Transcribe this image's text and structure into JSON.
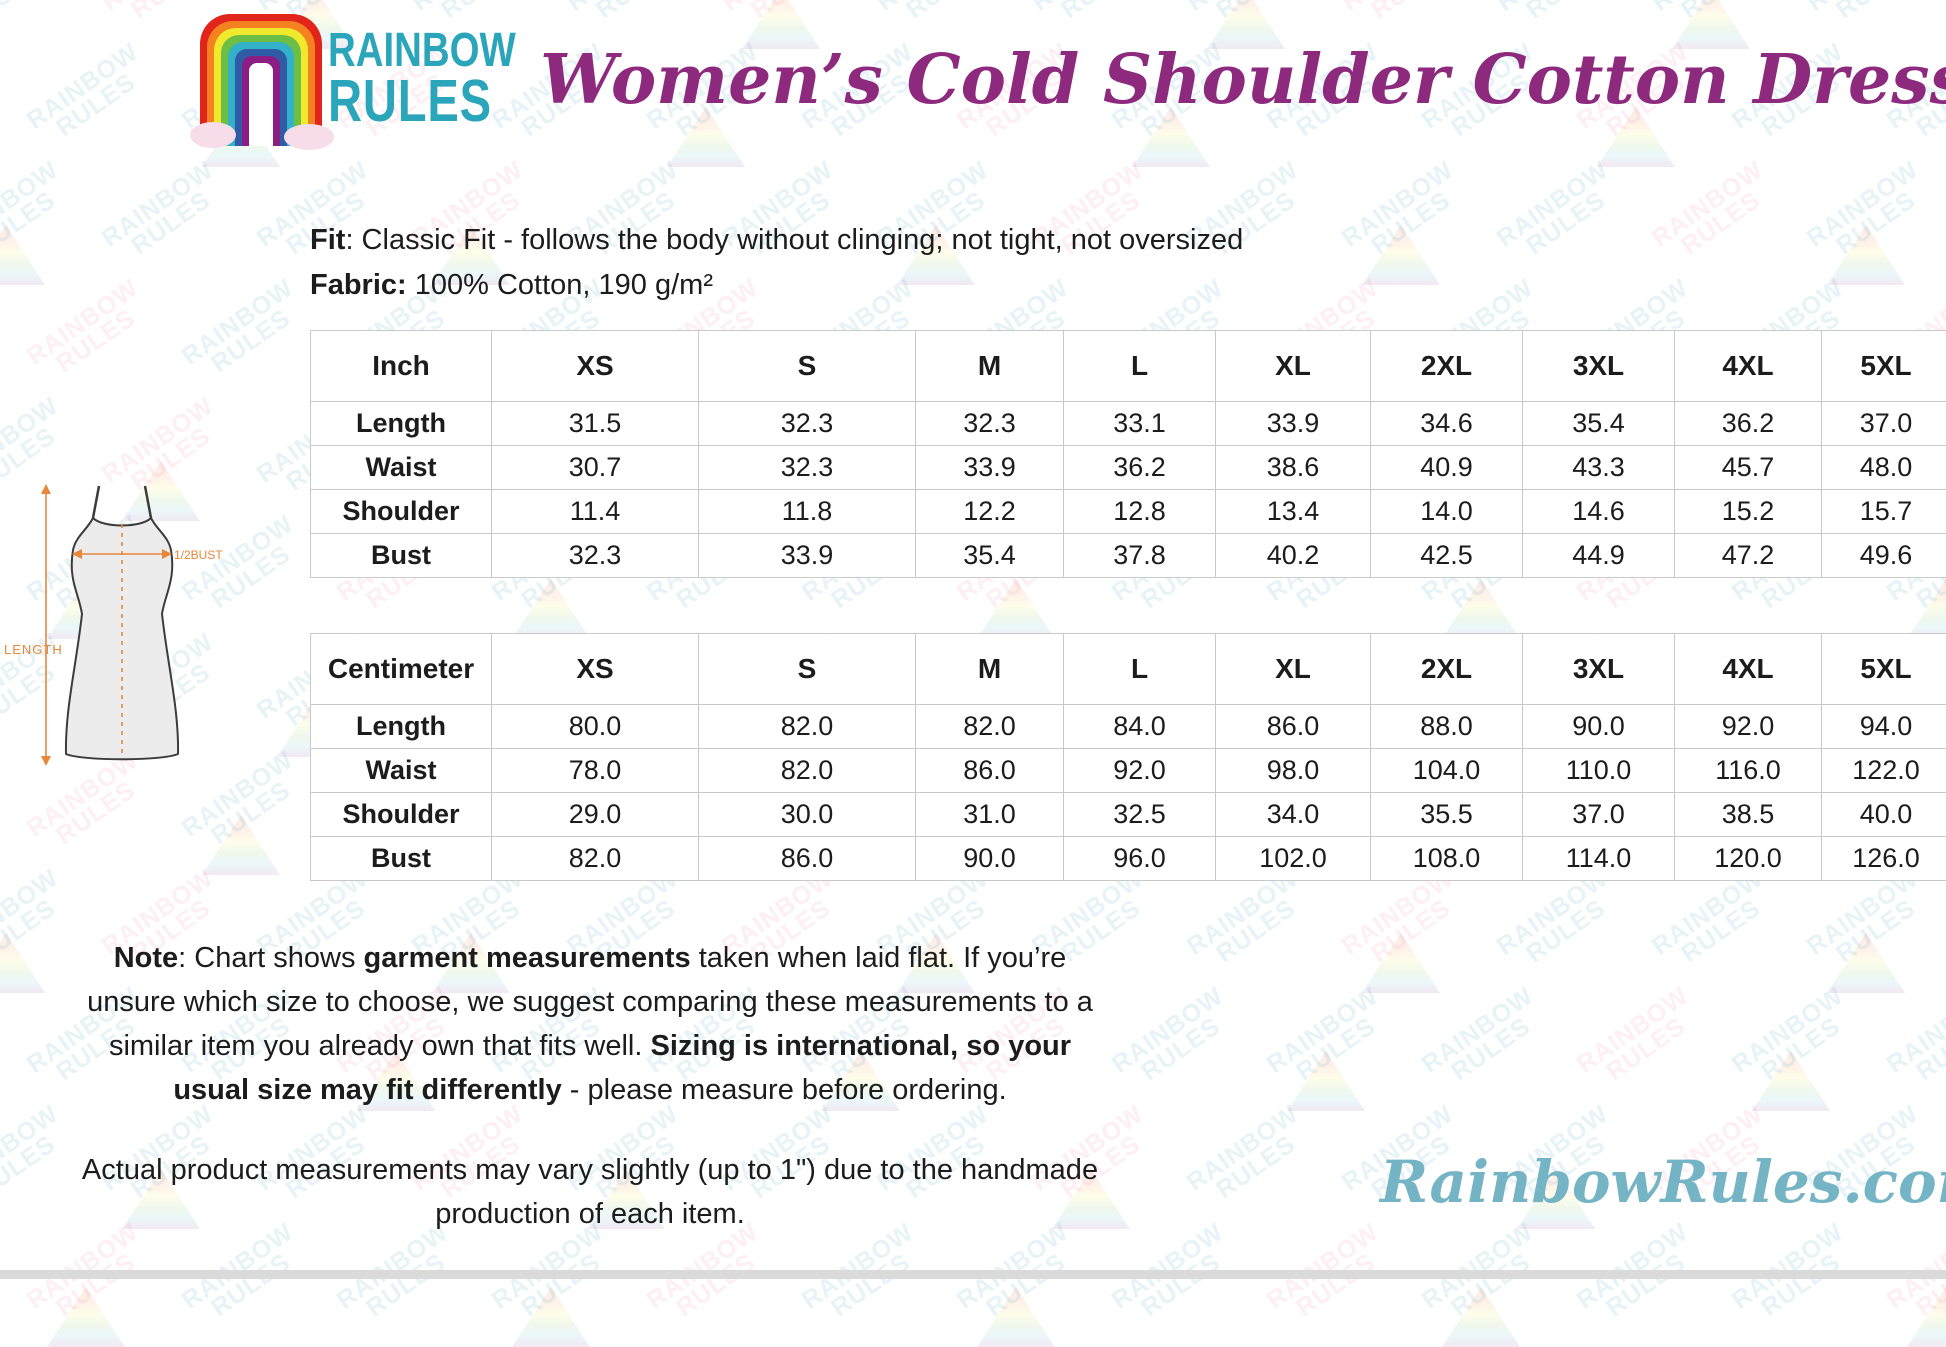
{
  "header": {
    "logo": {
      "line1": "RAINBOW",
      "line2": "RULES"
    },
    "title": "Women’s Cold Shoulder Cotton Dress"
  },
  "info": {
    "fit_label": "Fit",
    "fit_text": ": Classic Fit - follows the body without clinging; not tight, not oversized",
    "fabric_label": "Fabric:",
    "fabric_text": " 100% Cotton, 190 g/m²"
  },
  "diagram": {
    "length_label": "LENGTH",
    "bust_label": "1/2BUST"
  },
  "tables": [
    {
      "unit": "Inch",
      "sizes": [
        "XS",
        "S",
        "M",
        "L",
        "XL",
        "2XL",
        "3XL",
        "4XL",
        "5XL"
      ],
      "rows": [
        {
          "label": "Length",
          "values": [
            "31.5",
            "32.3",
            "32.3",
            "33.1",
            "33.9",
            "34.6",
            "35.4",
            "36.2",
            "37.0"
          ]
        },
        {
          "label": "Waist",
          "values": [
            "30.7",
            "32.3",
            "33.9",
            "36.2",
            "38.6",
            "40.9",
            "43.3",
            "45.7",
            "48.0"
          ]
        },
        {
          "label": "Shoulder",
          "values": [
            "11.4",
            "11.8",
            "12.2",
            "12.8",
            "13.4",
            "14.0",
            "14.6",
            "15.2",
            "15.7"
          ]
        },
        {
          "label": "Bust",
          "values": [
            "32.3",
            "33.9",
            "35.4",
            "37.8",
            "40.2",
            "42.5",
            "44.9",
            "47.2",
            "49.6"
          ]
        }
      ]
    },
    {
      "unit": "Centimeter",
      "sizes": [
        "XS",
        "S",
        "M",
        "L",
        "XL",
        "2XL",
        "3XL",
        "4XL",
        "5XL"
      ],
      "rows": [
        {
          "label": "Length",
          "values": [
            "80.0",
            "82.0",
            "82.0",
            "84.0",
            "86.0",
            "88.0",
            "90.0",
            "92.0",
            "94.0"
          ]
        },
        {
          "label": "Waist",
          "values": [
            "78.0",
            "82.0",
            "86.0",
            "92.0",
            "98.0",
            "104.0",
            "110.0",
            "116.0",
            "122.0"
          ]
        },
        {
          "label": "Shoulder",
          "values": [
            "29.0",
            "30.0",
            "31.0",
            "32.5",
            "34.0",
            "35.5",
            "37.0",
            "38.5",
            "40.0"
          ]
        },
        {
          "label": "Bust",
          "values": [
            "82.0",
            "86.0",
            "90.0",
            "96.0",
            "102.0",
            "108.0",
            "114.0",
            "120.0",
            "126.0"
          ]
        }
      ]
    }
  ],
  "note": {
    "segments": [
      {
        "t": "Note",
        "b": true
      },
      {
        "t": ": Chart shows ",
        "b": false
      },
      {
        "t": "garment measurements",
        "b": true
      },
      {
        "t": " taken when laid flat. If you’re unsure which size to choose, we suggest comparing these measurements to a similar item you already own that fits well. ",
        "b": false
      },
      {
        "t": "Sizing is international, so your usual size may fit differently",
        "b": true
      },
      {
        "t": " - please measure before ordering.",
        "b": false
      }
    ]
  },
  "footnote": "Actual product measurements may vary slightly (up to 1\") due to the handmade production of each item.",
  "brand_script": "RainbowRules.com",
  "watermark": {
    "line1": "RAINBOW",
    "line2": "RULES"
  },
  "colors": {
    "title_magenta": "#8d2a7e",
    "logo_teal": "#2aa5ba",
    "script_teal": "#74b4c5",
    "diagram_orange": "#e8873c",
    "table_border": "#c9c9c9",
    "rainbow": [
      "#e1251b",
      "#f58220",
      "#f0e92c",
      "#6cbe45",
      "#33b1c9",
      "#2f5ba7",
      "#8c1d82"
    ]
  }
}
